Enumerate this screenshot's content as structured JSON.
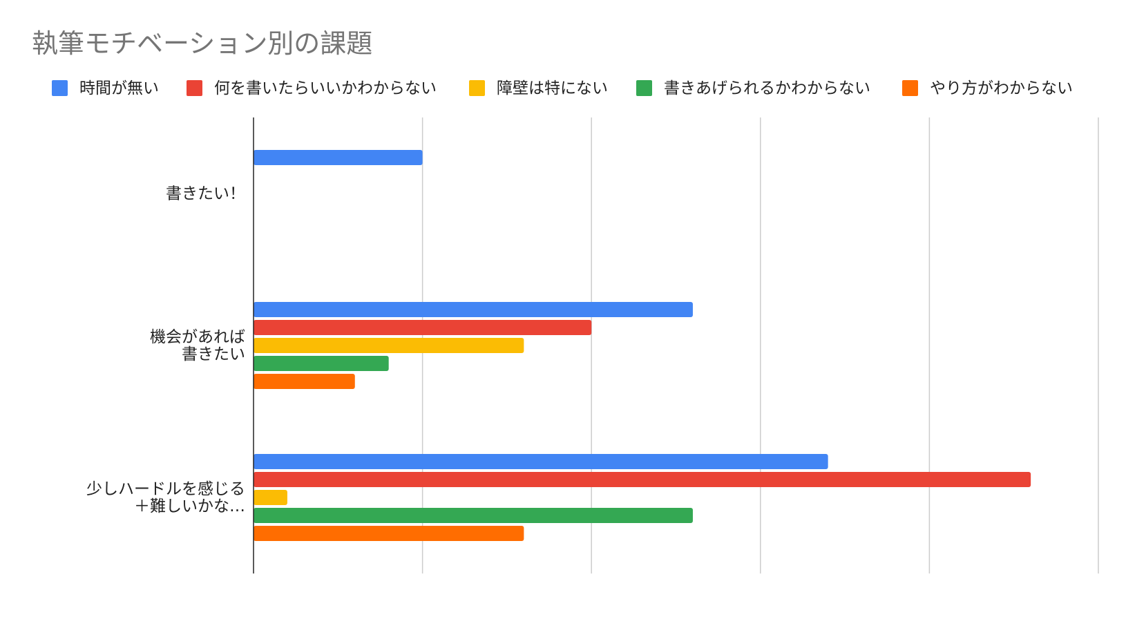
{
  "chart_data": {
    "type": "bar",
    "orientation": "horizontal",
    "title": "執筆モチベーション別の課題",
    "xlabel": "",
    "ylabel": "",
    "xlim": [
      0,
      5
    ],
    "grid": true,
    "legend_position": "top-left",
    "categories": [
      [
        "書きたい！"
      ],
      [
        "機会があれば",
        "書きたい"
      ],
      [
        "少しハードルを感じる",
        "＋難しいかな…"
      ]
    ],
    "series": [
      {
        "name": "時間が無い",
        "color": "#4285F4",
        "values": [
          1.0,
          2.6,
          3.4
        ]
      },
      {
        "name": "何を書いたらいいかわからない",
        "color": "#EA4335",
        "values": [
          0,
          2.0,
          4.6
        ]
      },
      {
        "name": "障壁は特にない",
        "color": "#FBBC04",
        "values": [
          0,
          1.6,
          0.2
        ]
      },
      {
        "name": "書きあげられるかわからない",
        "color": "#34A853",
        "values": [
          0,
          0.8,
          2.6
        ]
      },
      {
        "name": "やり方がわからない",
        "color": "#FF6D01",
        "values": [
          0,
          0.6,
          1.6
        ]
      }
    ]
  }
}
